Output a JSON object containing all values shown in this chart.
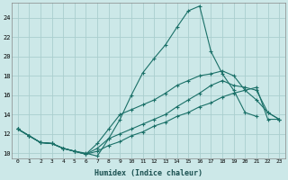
{
  "xlabel": "Humidex (Indice chaleur)",
  "ylabel": "",
  "bg_color": "#cce8e8",
  "grid_color": "#aacece",
  "line_color": "#1a7068",
  "xlim": [
    -0.5,
    23.5
  ],
  "ylim": [
    9.5,
    25.5
  ],
  "xticks": [
    0,
    1,
    2,
    3,
    4,
    5,
    6,
    7,
    8,
    9,
    10,
    11,
    12,
    13,
    14,
    15,
    16,
    17,
    18,
    19,
    20,
    21,
    22,
    23
  ],
  "yticks": [
    10,
    12,
    14,
    16,
    18,
    20,
    22,
    24
  ],
  "series": [
    [
      12.5,
      11.8,
      11.1,
      11.0,
      10.5,
      10.2,
      10.0,
      9.7,
      11.5,
      13.5,
      16.0,
      18.3,
      19.8,
      21.2,
      23.0,
      24.7,
      25.2,
      20.5,
      18.2,
      16.5,
      14.2,
      13.8,
      null,
      null
    ],
    [
      12.5,
      11.8,
      11.1,
      11.0,
      10.5,
      10.2,
      9.9,
      11.0,
      12.5,
      14.0,
      14.5,
      15.0,
      15.5,
      16.2,
      17.0,
      17.5,
      18.0,
      18.2,
      18.5,
      18.0,
      16.5,
      15.5,
      14.2,
      13.5
    ],
    [
      12.5,
      11.8,
      11.1,
      11.0,
      10.5,
      10.2,
      9.9,
      10.5,
      11.5,
      12.0,
      12.5,
      13.0,
      13.5,
      14.0,
      14.8,
      15.5,
      16.2,
      17.0,
      17.5,
      17.0,
      16.8,
      16.5,
      14.2,
      13.5
    ],
    [
      12.5,
      11.8,
      11.1,
      11.0,
      10.5,
      10.2,
      9.9,
      10.2,
      10.8,
      11.2,
      11.8,
      12.2,
      12.8,
      13.2,
      13.8,
      14.2,
      14.8,
      15.2,
      15.8,
      16.2,
      16.5,
      16.8,
      13.5,
      13.5
    ]
  ]
}
